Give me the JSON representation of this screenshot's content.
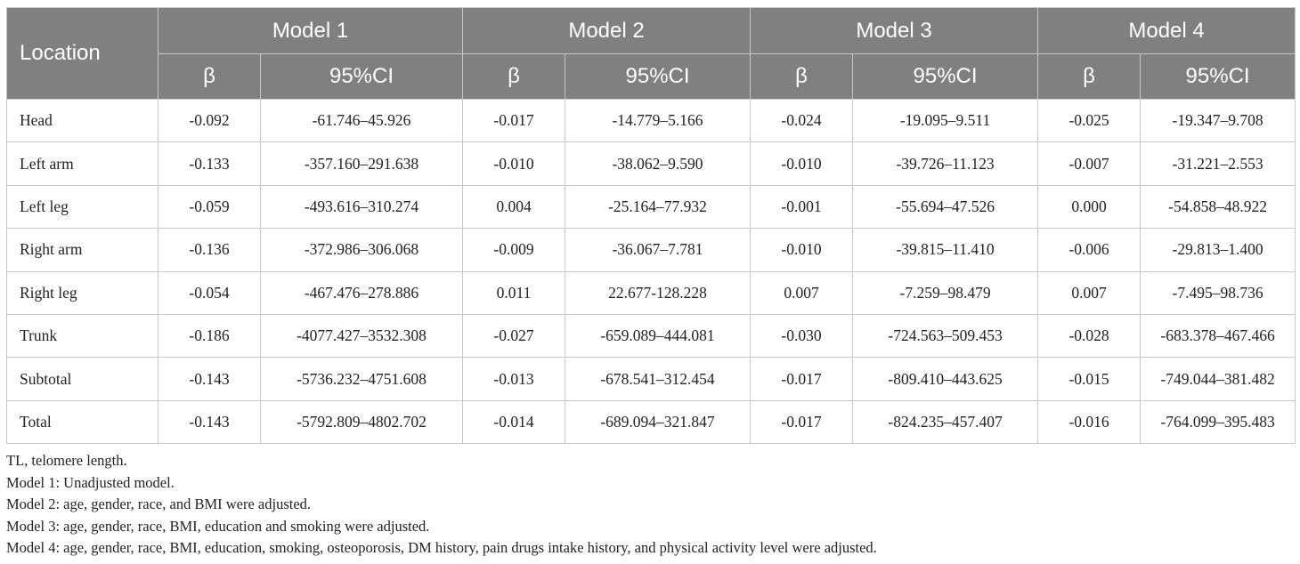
{
  "header": {
    "location": "Location",
    "models": [
      "Model 1",
      "Model 2",
      "Model 3",
      "Model 4"
    ],
    "sub": [
      "β",
      "95%CI"
    ]
  },
  "table": {
    "rows": [
      [
        "Head",
        "-0.092",
        "-61.746–45.926",
        "-0.017",
        "-14.779–5.166",
        "-0.024",
        "-19.095–9.511",
        "-0.025",
        "-19.347–9.708"
      ],
      [
        "Left arm",
        "-0.133",
        "-357.160–291.638",
        "-0.010",
        "-38.062–9.590",
        "-0.010",
        "-39.726–11.123",
        "-0.007",
        "-31.221–2.553"
      ],
      [
        "Left leg",
        "-0.059",
        "-493.616–310.274",
        "0.004",
        "-25.164–77.932",
        "-0.001",
        "-55.694–47.526",
        "0.000",
        "-54.858–48.922"
      ],
      [
        "Right arm",
        "-0.136",
        "-372.986–306.068",
        "-0.009",
        "-36.067–7.781",
        "-0.010",
        "-39.815–11.410",
        "-0.006",
        "-29.813–1.400"
      ],
      [
        "Right leg",
        "-0.054",
        "-467.476–278.886",
        "0.011",
        "22.677-128.228",
        "0.007",
        "-7.259–98.479",
        "0.007",
        "-7.495–98.736"
      ],
      [
        "Trunk",
        "-0.186",
        "-4077.427–3532.308",
        "-0.027",
        "-659.089–444.081",
        "-0.030",
        "-724.563–509.453",
        "-0.028",
        "-683.378–467.466"
      ],
      [
        "Subtotal",
        "-0.143",
        "-5736.232–4751.608",
        "-0.013",
        "-678.541–312.454",
        "-0.017",
        "-809.410–443.625",
        "-0.015",
        "-749.044–381.482"
      ],
      [
        "Total",
        "-0.143",
        "-5792.809–4802.702",
        "-0.014",
        "-689.094–321.847",
        "-0.017",
        "-824.235–457.407",
        "-0.016",
        "-764.099–395.483"
      ]
    ]
  },
  "footnotes": [
    "TL, telomere length.",
    "Model 1: Unadjusted model.",
    "Model 2: age, gender, race, and BMI were adjusted.",
    "Model 3: age, gender, race, BMI, education and smoking were adjusted.",
    "Model 4: age, gender, race, BMI, education, smoking, osteoporosis, DM history, pain drugs intake history, and physical activity level were adjusted."
  ]
}
